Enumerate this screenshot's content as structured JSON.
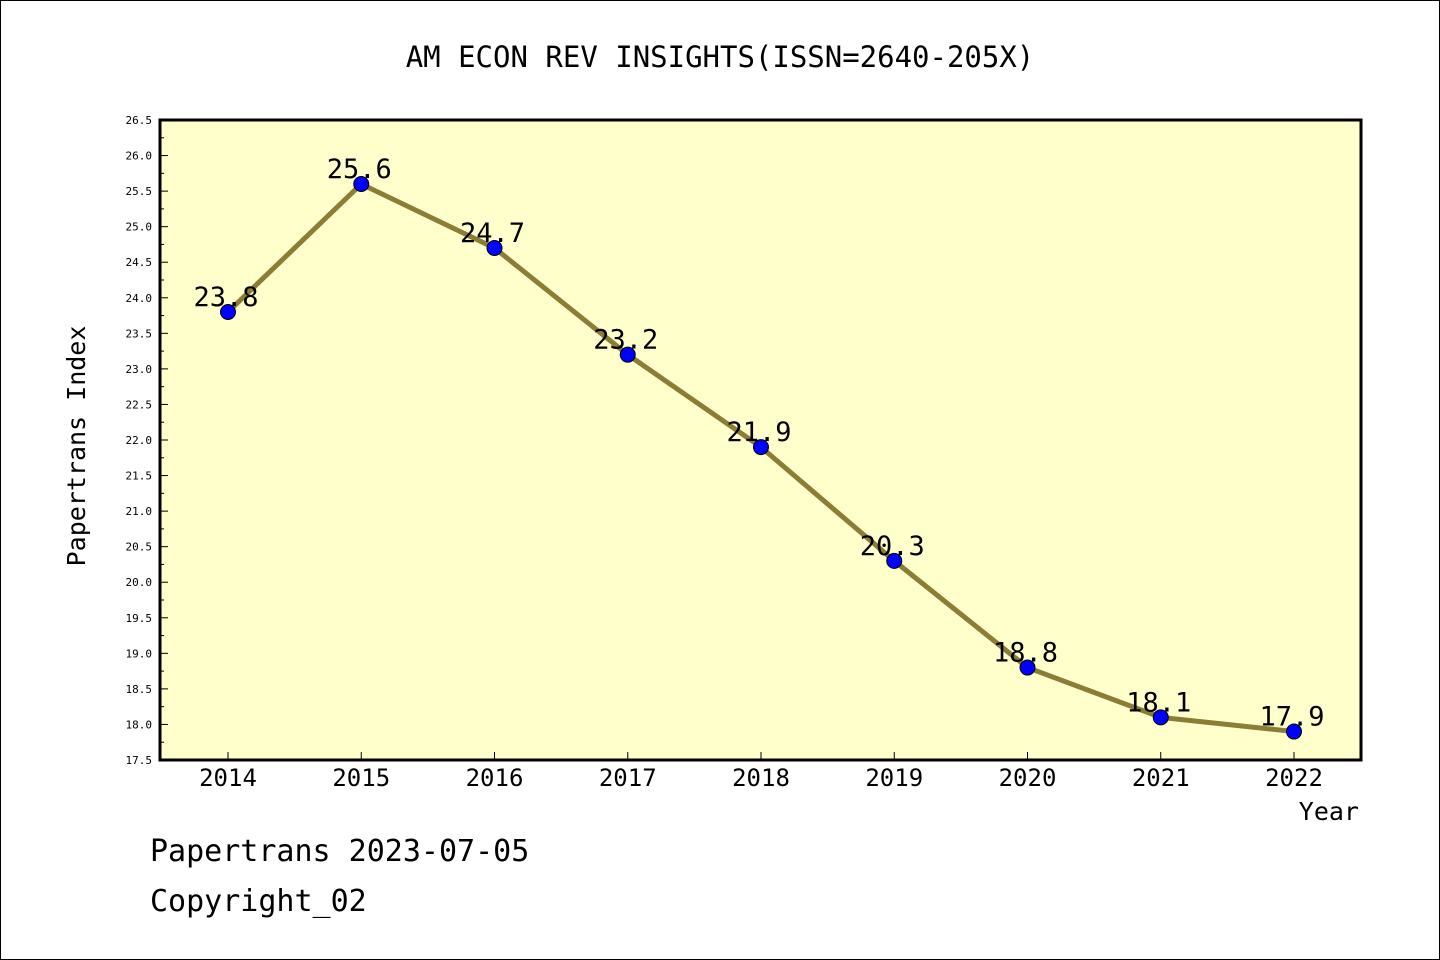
{
  "footer": {
    "line1": "Papertrans 2023-07-05",
    "line2": "Copyright_02"
  },
  "colors": {
    "plot_background": "#ffffcc",
    "line": "#8c7d35",
    "marker": "#0000ff",
    "axis": "#000000",
    "page_background": "#ffffff"
  },
  "chart_data": {
    "type": "line",
    "title": "AM ECON REV INSIGHTS(ISSN=2640-205X)",
    "xlabel": "Year",
    "ylabel": "Papertrans Index",
    "categories": [
      "2014",
      "2015",
      "2016",
      "2017",
      "2018",
      "2019",
      "2020",
      "2021",
      "2022"
    ],
    "series": [
      {
        "values": [
          23.8,
          25.6,
          24.7,
          23.2,
          21.9,
          20.3,
          18.8,
          18.1,
          17.9
        ],
        "data_labels": [
          "23.8",
          "25.6",
          "24.7",
          "23.2",
          "21.9",
          "20.3",
          "18.8",
          "18.1",
          "17.9"
        ]
      }
    ],
    "ylim": [
      17.5,
      26.5
    ],
    "yticks": [
      "17.5",
      "18.0",
      "18.5",
      "19.0",
      "19.5",
      "20.0",
      "20.5",
      "21.0",
      "21.5",
      "22.0",
      "22.5",
      "23.0",
      "23.5",
      "24.0",
      "24.5",
      "25.0",
      "25.5",
      "26.0",
      "26.5"
    ],
    "grid": false,
    "legend": "none"
  }
}
